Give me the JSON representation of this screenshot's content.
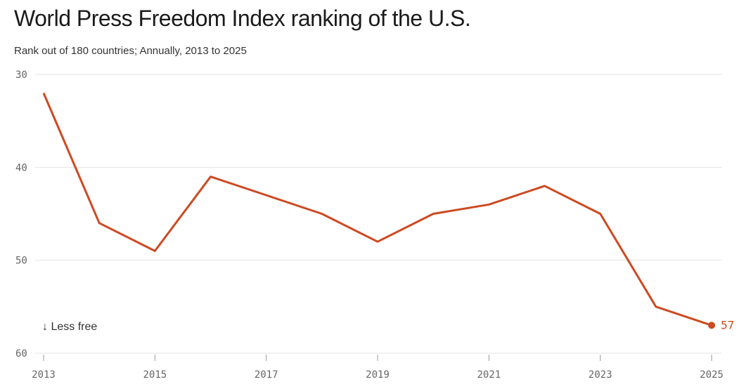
{
  "title": "World Press Freedom Index ranking of the U.S.",
  "subtitle": "Rank out of 180 countries; Annually, 2013 to 2025",
  "chart_data": {
    "type": "line",
    "title": "World Press Freedom Index ranking of the U.S.",
    "subtitle": "Rank out of 180 countries; Annually, 2013 to 2025",
    "x": [
      2013,
      2014,
      2015,
      2016,
      2017,
      2018,
      2019,
      2020,
      2021,
      2022,
      2023,
      2024,
      2025
    ],
    "series": [
      {
        "values": [
          32,
          46,
          49,
          41,
          43,
          45,
          48,
          45,
          44,
          42,
          45,
          55,
          57
        ]
      }
    ],
    "xticks": [
      "2013",
      "2015",
      "2017",
      "2019",
      "2021",
      "2023",
      "2025"
    ],
    "yticks": [
      "30",
      "40",
      "50",
      "60"
    ],
    "ylim": [
      30,
      60
    ],
    "y_inverted": true,
    "grid": true,
    "line_color": "#cc4a22",
    "annotation": "↓ Less free",
    "end_label": "57"
  }
}
